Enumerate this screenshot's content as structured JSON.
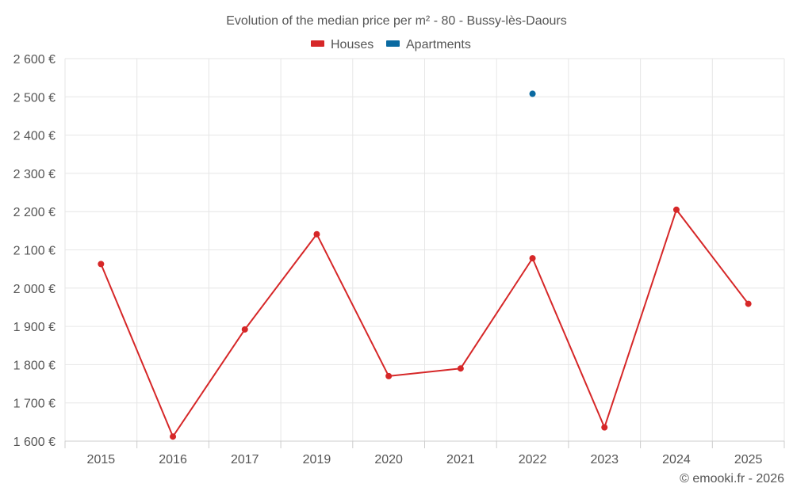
{
  "chart_data": {
    "type": "line",
    "title": "Evolution of the median price per m² - 80 - Bussy-lès-Daours",
    "categories": [
      "2015",
      "2016",
      "2017",
      "2019",
      "2020",
      "2021",
      "2022",
      "2023",
      "2024",
      "2025"
    ],
    "ylim": [
      1600,
      2600
    ],
    "yticks": [
      1600,
      1700,
      1800,
      1900,
      2000,
      2100,
      2200,
      2300,
      2400,
      2500,
      2600
    ],
    "ytick_labels": [
      "1 600 €",
      "1 700 €",
      "1 800 €",
      "1 900 €",
      "2 000 €",
      "2 100 €",
      "2 200 €",
      "2 300 €",
      "2 400 €",
      "2 500 €",
      "2 600 €"
    ],
    "series": [
      {
        "name": "Houses",
        "color": "#d62728",
        "values": [
          2063,
          1612,
          1892,
          2141,
          1770,
          1790,
          2078,
          1636,
          2205,
          1959
        ]
      },
      {
        "name": "Apartments",
        "color": "#0a6aa1",
        "values": [
          null,
          null,
          null,
          null,
          null,
          null,
          2508,
          null,
          null,
          null
        ]
      }
    ],
    "legend": "top-center",
    "grid": true,
    "credit": "© emooki.fr - 2026"
  }
}
